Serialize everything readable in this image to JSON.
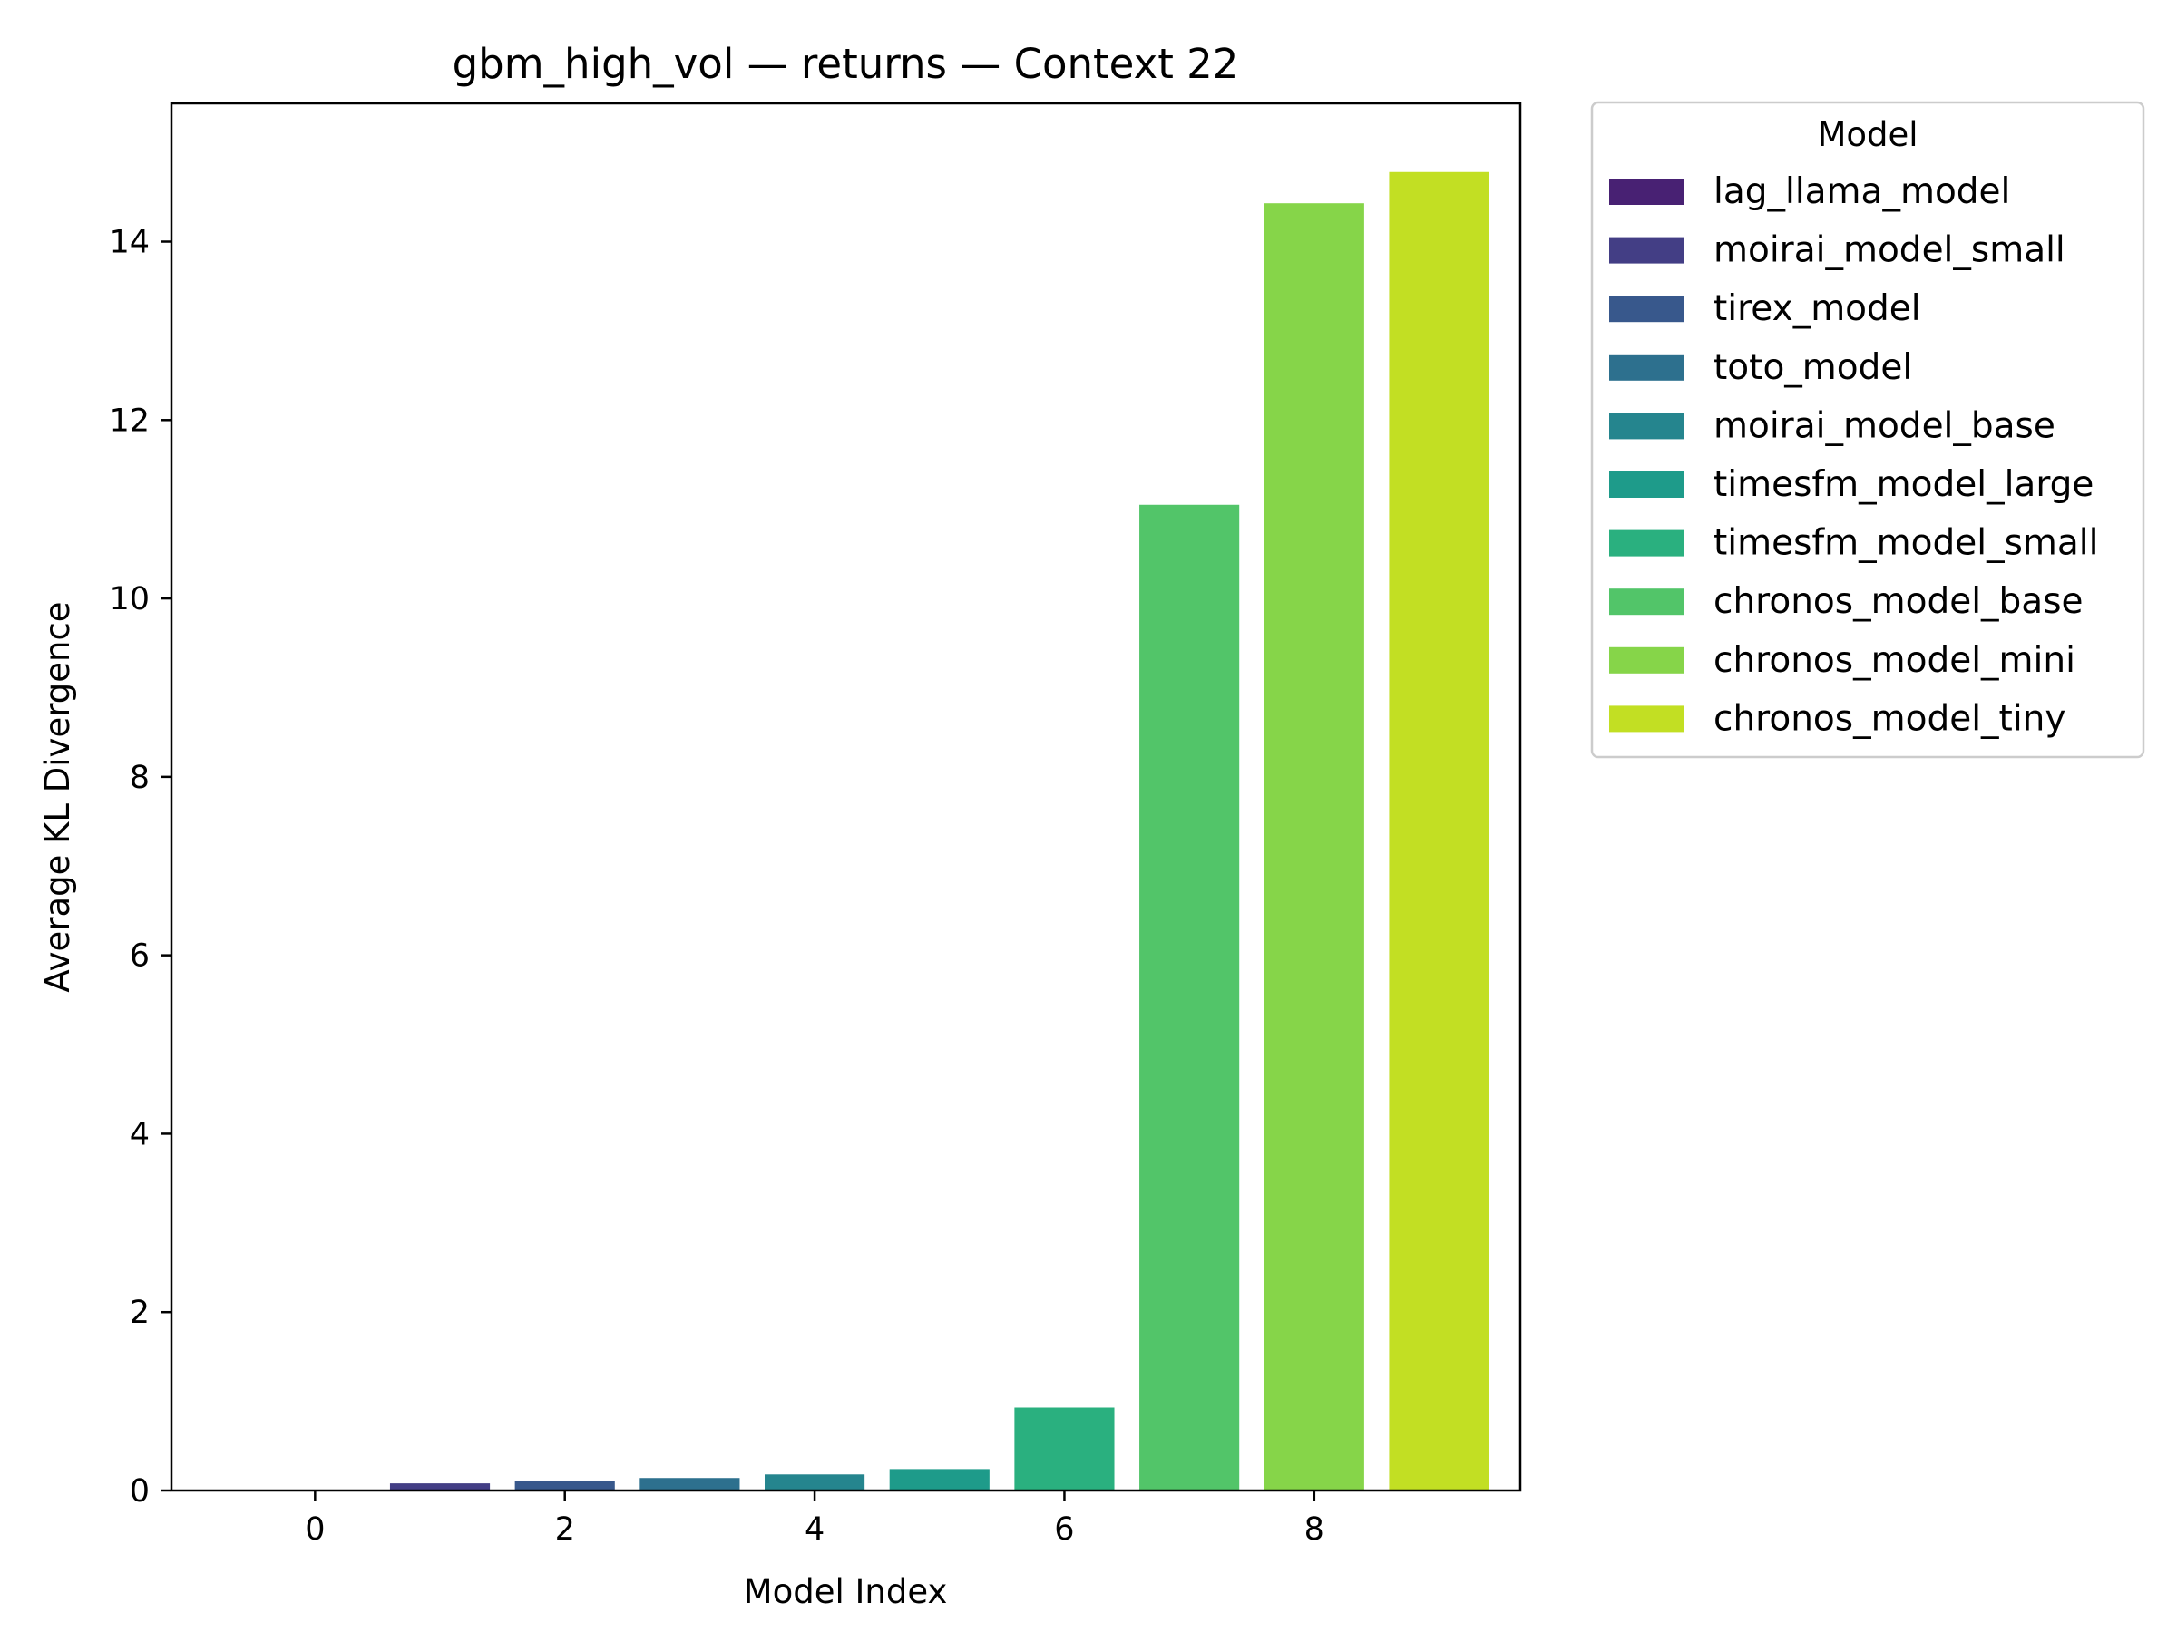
{
  "chart_data": {
    "type": "bar",
    "title": "gbm_high_vol — returns — Context 22",
    "xlabel": "Model Index",
    "ylabel": "Average KL Divergence",
    "x": [
      0,
      1,
      2,
      3,
      4,
      5,
      6,
      7,
      8,
      9
    ],
    "xticks": [
      0,
      2,
      4,
      6,
      8
    ],
    "yticks": [
      0,
      2,
      4,
      6,
      8,
      10,
      12,
      14
    ],
    "xlim": [
      -1.15,
      9.65
    ],
    "ylim": [
      0,
      15.55
    ],
    "grid": false,
    "legend_placement": "outside-right",
    "legend_title": "Model",
    "series": [
      {
        "name": "lag_llama_model",
        "x": 0,
        "value": 0.0,
        "color": "#482173"
      },
      {
        "name": "moirai_model_small",
        "x": 1,
        "value": 0.08,
        "color": "#433e85"
      },
      {
        "name": "tirex_model",
        "x": 2,
        "value": 0.11,
        "color": "#38588c"
      },
      {
        "name": "toto_model",
        "x": 3,
        "value": 0.14,
        "color": "#2d708e"
      },
      {
        "name": "moirai_model_base",
        "x": 4,
        "value": 0.18,
        "color": "#25858e"
      },
      {
        "name": "timesfm_model_large",
        "x": 5,
        "value": 0.24,
        "color": "#1e9b8a"
      },
      {
        "name": "timesfm_model_small",
        "x": 6,
        "value": 0.93,
        "color": "#2ab07f"
      },
      {
        "name": "chronos_model_base",
        "x": 7,
        "value": 11.05,
        "color": "#52c569"
      },
      {
        "name": "chronos_model_mini",
        "x": 8,
        "value": 14.43,
        "color": "#86d549"
      },
      {
        "name": "chronos_model_tiny",
        "x": 9,
        "value": 14.78,
        "color": "#c2df23"
      }
    ]
  }
}
